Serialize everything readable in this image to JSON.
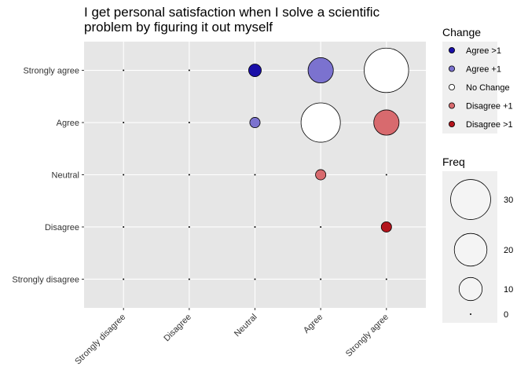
{
  "chart_data": {
    "type": "scatter",
    "title_line1": "I get personal satisfaction when I solve a scientific",
    "title_line2": "problem by figuring it out myself",
    "x_categories": [
      "Strongly disagree",
      "Disagree",
      "Neutral",
      "Agree",
      "Strongly agree"
    ],
    "y_categories": [
      "Strongly disagree",
      "Disagree",
      "Neutral",
      "Agree",
      "Strongly agree"
    ],
    "change_legend": {
      "title": "Change",
      "items": [
        {
          "label": "Agree >1",
          "color": "#1a0fa8"
        },
        {
          "label": "Agree +1",
          "color": "#7b72cf"
        },
        {
          "label": "No Change",
          "color": "#ffffff"
        },
        {
          "label": "Disagree +1",
          "color": "#d86a6e"
        },
        {
          "label": "Disagree >1",
          "color": "#b3141c"
        }
      ]
    },
    "freq_legend": {
      "title": "Freq",
      "values": [
        30,
        20,
        10,
        0
      ]
    },
    "points": [
      {
        "x": "Neutral",
        "y": "Strongly agree",
        "freq": 3,
        "change": "Agree >1"
      },
      {
        "x": "Agree",
        "y": "Strongly agree",
        "freq": 12,
        "change": "Agree +1"
      },
      {
        "x": "Strongly agree",
        "y": "Strongly agree",
        "freq": 37,
        "change": "No Change"
      },
      {
        "x": "Neutral",
        "y": "Agree",
        "freq": 2,
        "change": "Agree +1"
      },
      {
        "x": "Agree",
        "y": "Agree",
        "freq": 29,
        "change": "No Change"
      },
      {
        "x": "Strongly agree",
        "y": "Agree",
        "freq": 12,
        "change": "Disagree +1"
      },
      {
        "x": "Agree",
        "y": "Neutral",
        "freq": 2,
        "change": "Disagree +1"
      },
      {
        "x": "Strongly agree",
        "y": "Disagree",
        "freq": 2,
        "change": "Disagree >1"
      }
    ],
    "zero_points_default": 0,
    "grid": true,
    "panel_background": "#e6e6e6",
    "legend_position": "right"
  }
}
